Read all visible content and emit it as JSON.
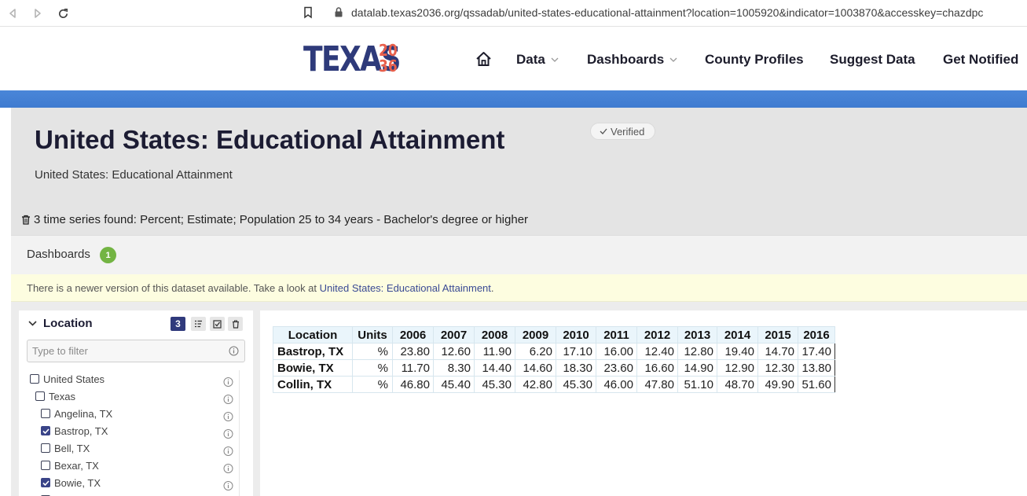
{
  "browser": {
    "url": "datalab.texas2036.org/qssadab/united-states-educational-attainment?location=1005920&indicator=1003870&accesskey=chazdpc"
  },
  "header": {
    "logo_text": "TEXAS",
    "logo_num_top": "20",
    "logo_num_bottom": "36",
    "menu": {
      "data": "Data",
      "dashboards": "Dashboards",
      "county_profiles": "County Profiles",
      "suggest_data": "Suggest Data",
      "get_notified": "Get Notified"
    }
  },
  "page": {
    "title": "United States: Educational Attainment",
    "verified": "Verified",
    "subtitle": "United States: Educational Attainment",
    "series_found": "3 time series found: Percent; Estimate; Population 25 to 34 years - Bachelor's degree or higher"
  },
  "dashboards": {
    "label": "Dashboards",
    "count": "1"
  },
  "notice": {
    "text": "There is a newer version of this dataset available. Take a look at ",
    "link": "United States: Educational Attainment",
    "end": "."
  },
  "sidebar": {
    "title": "Location",
    "count": "3",
    "filter_placeholder": "Type to filter",
    "items": [
      {
        "label": "United States",
        "checked": false
      },
      {
        "label": "Texas",
        "checked": false
      },
      {
        "label": "Angelina, TX",
        "checked": false
      },
      {
        "label": "Bastrop, TX",
        "checked": true
      },
      {
        "label": "Bell, TX",
        "checked": false
      },
      {
        "label": "Bexar, TX",
        "checked": false
      },
      {
        "label": "Bowie, TX",
        "checked": true
      }
    ]
  },
  "table": {
    "headers": [
      "Location",
      "Units",
      "2006",
      "2007",
      "2008",
      "2009",
      "2010",
      "2011",
      "2012",
      "2013",
      "2014",
      "2015",
      "2016"
    ],
    "rows": [
      [
        "Bastrop, TX",
        "%",
        "23.80",
        "12.60",
        "11.90",
        "6.20",
        "17.10",
        "16.00",
        "12.40",
        "12.80",
        "19.40",
        "14.70",
        "17.40"
      ],
      [
        "Bowie, TX",
        "%",
        "11.70",
        "8.30",
        "14.40",
        "14.60",
        "18.30",
        "23.60",
        "16.60",
        "14.90",
        "12.90",
        "12.30",
        "13.80"
      ],
      [
        "Collin, TX",
        "%",
        "46.80",
        "45.40",
        "45.30",
        "42.80",
        "45.30",
        "46.00",
        "47.80",
        "51.10",
        "48.70",
        "49.90",
        "51.60"
      ]
    ]
  },
  "colors": {
    "brand_navy": "#2e3a7a",
    "brand_orange": "#e8604c",
    "accent_blue": "#4a86d8",
    "badge_green": "#73b443"
  }
}
